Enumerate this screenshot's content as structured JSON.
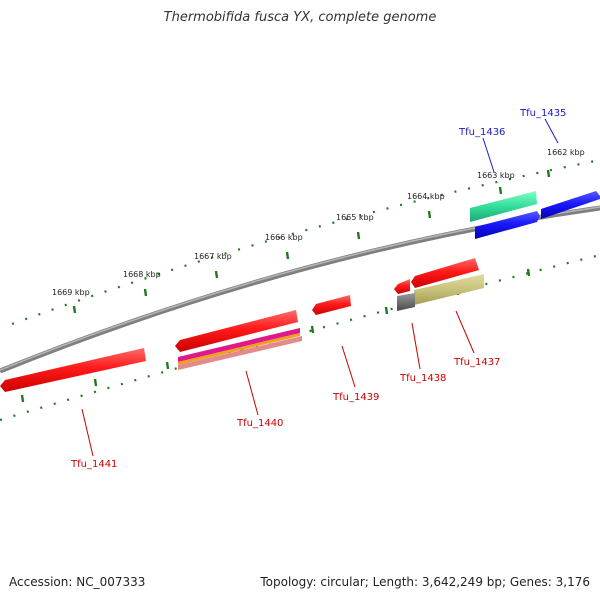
{
  "title": "Thermobifida fusca YX, complete genome",
  "footer": {
    "accession": "Accession: NC_007333",
    "summary": "Topology: circular; Length: 3,642,249 bp; Genes: 3,176"
  },
  "colors": {
    "backbone": "#7f7f7f",
    "ruler_ticks": "#1f7a1f",
    "forward_label": "#1a1acc",
    "reverse_label": "#cc0000"
  },
  "ruler_labels": [
    "1662 kbp",
    "1663 kbp",
    "1664 kbp",
    "1665 kbp",
    "1666 kbp",
    "1667 kbp",
    "1668 kbp",
    "1669 kbp"
  ],
  "genes": [
    {
      "id": "tfu_1435",
      "label": "Tfu_1435",
      "strand": "forward"
    },
    {
      "id": "tfu_1436",
      "label": "Tfu_1436",
      "strand": "forward"
    },
    {
      "id": "tfu_1437",
      "label": "Tfu_1437",
      "strand": "reverse"
    },
    {
      "id": "tfu_1438",
      "label": "Tfu_1438",
      "strand": "reverse"
    },
    {
      "id": "tfu_1439",
      "label": "Tfu_1439",
      "strand": "reverse"
    },
    {
      "id": "tfu_1440",
      "label": "Tfu_1440",
      "strand": "reverse"
    },
    {
      "id": "tfu_1441",
      "label": "Tfu_1441",
      "strand": "reverse"
    }
  ]
}
